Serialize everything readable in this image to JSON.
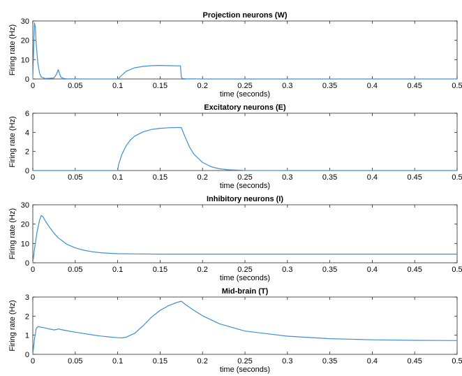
{
  "chart_data": [
    {
      "type": "line",
      "title": "Projection neurons (W)",
      "xlabel": "time (seconds)",
      "ylabel": "Firing rate (Hz)",
      "xlim": [
        0,
        0.5
      ],
      "ylim": [
        0,
        30
      ],
      "xticks": [
        0,
        0.05,
        0.1,
        0.15,
        0.2,
        0.25,
        0.3,
        0.35,
        0.4,
        0.45,
        0.5
      ],
      "xtick_labels": [
        "0",
        "0.05",
        "0.1",
        "0.15",
        "0.2",
        "0.25",
        "0.3",
        "0.35",
        "0.4",
        "0.45",
        "0.5"
      ],
      "yticks": [
        0,
        10,
        20,
        30
      ],
      "ytick_labels": [
        "0",
        "10",
        "20",
        "30"
      ],
      "grid": false,
      "color": "#3f8fd2",
      "x": [
        0,
        0.001,
        0.002,
        0.003,
        0.004,
        0.006,
        0.008,
        0.01,
        0.015,
        0.025,
        0.028,
        0.03,
        0.031,
        0.033,
        0.036,
        0.04,
        0.06,
        0.09,
        0.1,
        0.101,
        0.105,
        0.11,
        0.12,
        0.13,
        0.14,
        0.15,
        0.16,
        0.17,
        0.174,
        0.175,
        0.176,
        0.18,
        0.2,
        0.3,
        0.4,
        0.5
      ],
      "y": [
        0,
        15,
        29,
        27,
        18,
        8,
        3,
        1,
        0.2,
        0.5,
        2.5,
        4.8,
        3.5,
        1,
        0.3,
        0.1,
        0,
        0,
        0,
        0.3,
        2,
        4,
        5.8,
        6.5,
        6.9,
        7,
        6.9,
        6.8,
        6.8,
        1,
        0.3,
        0.1,
        0,
        0,
        0,
        0
      ]
    },
    {
      "type": "line",
      "title": "Excitatory neurons (E)",
      "xlabel": "time (seconds)",
      "ylabel": "Firing rate (Hz)",
      "xlim": [
        0,
        0.5
      ],
      "ylim": [
        0,
        6
      ],
      "xticks": [
        0,
        0.05,
        0.1,
        0.15,
        0.2,
        0.25,
        0.3,
        0.35,
        0.4,
        0.45,
        0.5
      ],
      "xtick_labels": [
        "0",
        "0.05",
        "0.1",
        "0.15",
        "0.2",
        "0.25",
        "0.3",
        "0.35",
        "0.4",
        "0.45",
        "0.5"
      ],
      "yticks": [
        0,
        2,
        4,
        6
      ],
      "ytick_labels": [
        "0",
        "2",
        "4",
        "6"
      ],
      "grid": false,
      "color": "#3f8fd2",
      "x": [
        0,
        0.1,
        0.101,
        0.105,
        0.11,
        0.115,
        0.12,
        0.13,
        0.14,
        0.15,
        0.16,
        0.17,
        0.175,
        0.18,
        0.185,
        0.19,
        0.2,
        0.21,
        0.22,
        0.23,
        0.25,
        0.3,
        0.5
      ],
      "y": [
        0,
        0,
        0.6,
        1.7,
        2.6,
        3.2,
        3.6,
        4.05,
        4.3,
        4.42,
        4.48,
        4.5,
        4.5,
        3.4,
        2.4,
        1.7,
        0.85,
        0.4,
        0.18,
        0.08,
        0.01,
        0,
        0
      ]
    },
    {
      "type": "line",
      "title": "Inhibitory neurons (I)",
      "xlabel": "time (seconds)",
      "ylabel": "Firing rate (Hz)",
      "xlim": [
        0,
        0.5
      ],
      "ylim": [
        0,
        30
      ],
      "xticks": [
        0,
        0.05,
        0.1,
        0.15,
        0.2,
        0.25,
        0.3,
        0.35,
        0.4,
        0.45,
        0.5
      ],
      "xtick_labels": [
        "0",
        "0.05",
        "0.1",
        "0.15",
        "0.2",
        "0.25",
        "0.3",
        "0.35",
        "0.4",
        "0.45",
        "0.5"
      ],
      "yticks": [
        0,
        10,
        20,
        30
      ],
      "ytick_labels": [
        "0",
        "10",
        "20",
        "30"
      ],
      "grid": false,
      "color": "#3f8fd2",
      "x": [
        0,
        0.002,
        0.005,
        0.008,
        0.01,
        0.012,
        0.015,
        0.02,
        0.025,
        0.03,
        0.04,
        0.05,
        0.06,
        0.07,
        0.08,
        0.09,
        0.1,
        0.12,
        0.15,
        0.2,
        0.3,
        0.4,
        0.5
      ],
      "y": [
        0,
        7,
        16,
        22,
        24.5,
        23.8,
        21.5,
        18.2,
        15.3,
        12.9,
        9.6,
        7.7,
        6.5,
        5.7,
        5.2,
        4.9,
        4.7,
        4.6,
        4.5,
        4.5,
        4.5,
        4.5,
        4.5
      ]
    },
    {
      "type": "line",
      "title": "Mid-brain (T)",
      "xlabel": "time (seconds)",
      "ylabel": "Firing rate (Hz)",
      "xlim": [
        0,
        0.5
      ],
      "ylim": [
        0,
        3
      ],
      "xticks": [
        0,
        0.05,
        0.1,
        0.15,
        0.2,
        0.25,
        0.3,
        0.35,
        0.4,
        0.45,
        0.5
      ],
      "xtick_labels": [
        "0",
        "0.05",
        "0.1",
        "0.15",
        "0.2",
        "0.25",
        "0.3",
        "0.35",
        "0.4",
        "0.45",
        "0.5"
      ],
      "yticks": [
        0,
        1,
        2,
        3
      ],
      "ytick_labels": [
        "0",
        "1",
        "2",
        "3"
      ],
      "grid": false,
      "color": "#3f8fd2",
      "x": [
        0,
        0.002,
        0.004,
        0.006,
        0.01,
        0.015,
        0.02,
        0.025,
        0.028,
        0.03,
        0.033,
        0.04,
        0.05,
        0.06,
        0.07,
        0.08,
        0.09,
        0.1,
        0.105,
        0.11,
        0.12,
        0.13,
        0.14,
        0.15,
        0.16,
        0.17,
        0.175,
        0.18,
        0.19,
        0.2,
        0.22,
        0.25,
        0.3,
        0.35,
        0.4,
        0.45,
        0.5
      ],
      "y": [
        0,
        0.8,
        1.35,
        1.45,
        1.42,
        1.38,
        1.32,
        1.28,
        1.3,
        1.33,
        1.3,
        1.24,
        1.16,
        1.09,
        1.02,
        0.96,
        0.91,
        0.87,
        0.86,
        0.9,
        1.1,
        1.5,
        1.95,
        2.3,
        2.55,
        2.72,
        2.78,
        2.6,
        2.3,
        2.02,
        1.6,
        1.22,
        0.95,
        0.82,
        0.76,
        0.73,
        0.72
      ]
    }
  ]
}
